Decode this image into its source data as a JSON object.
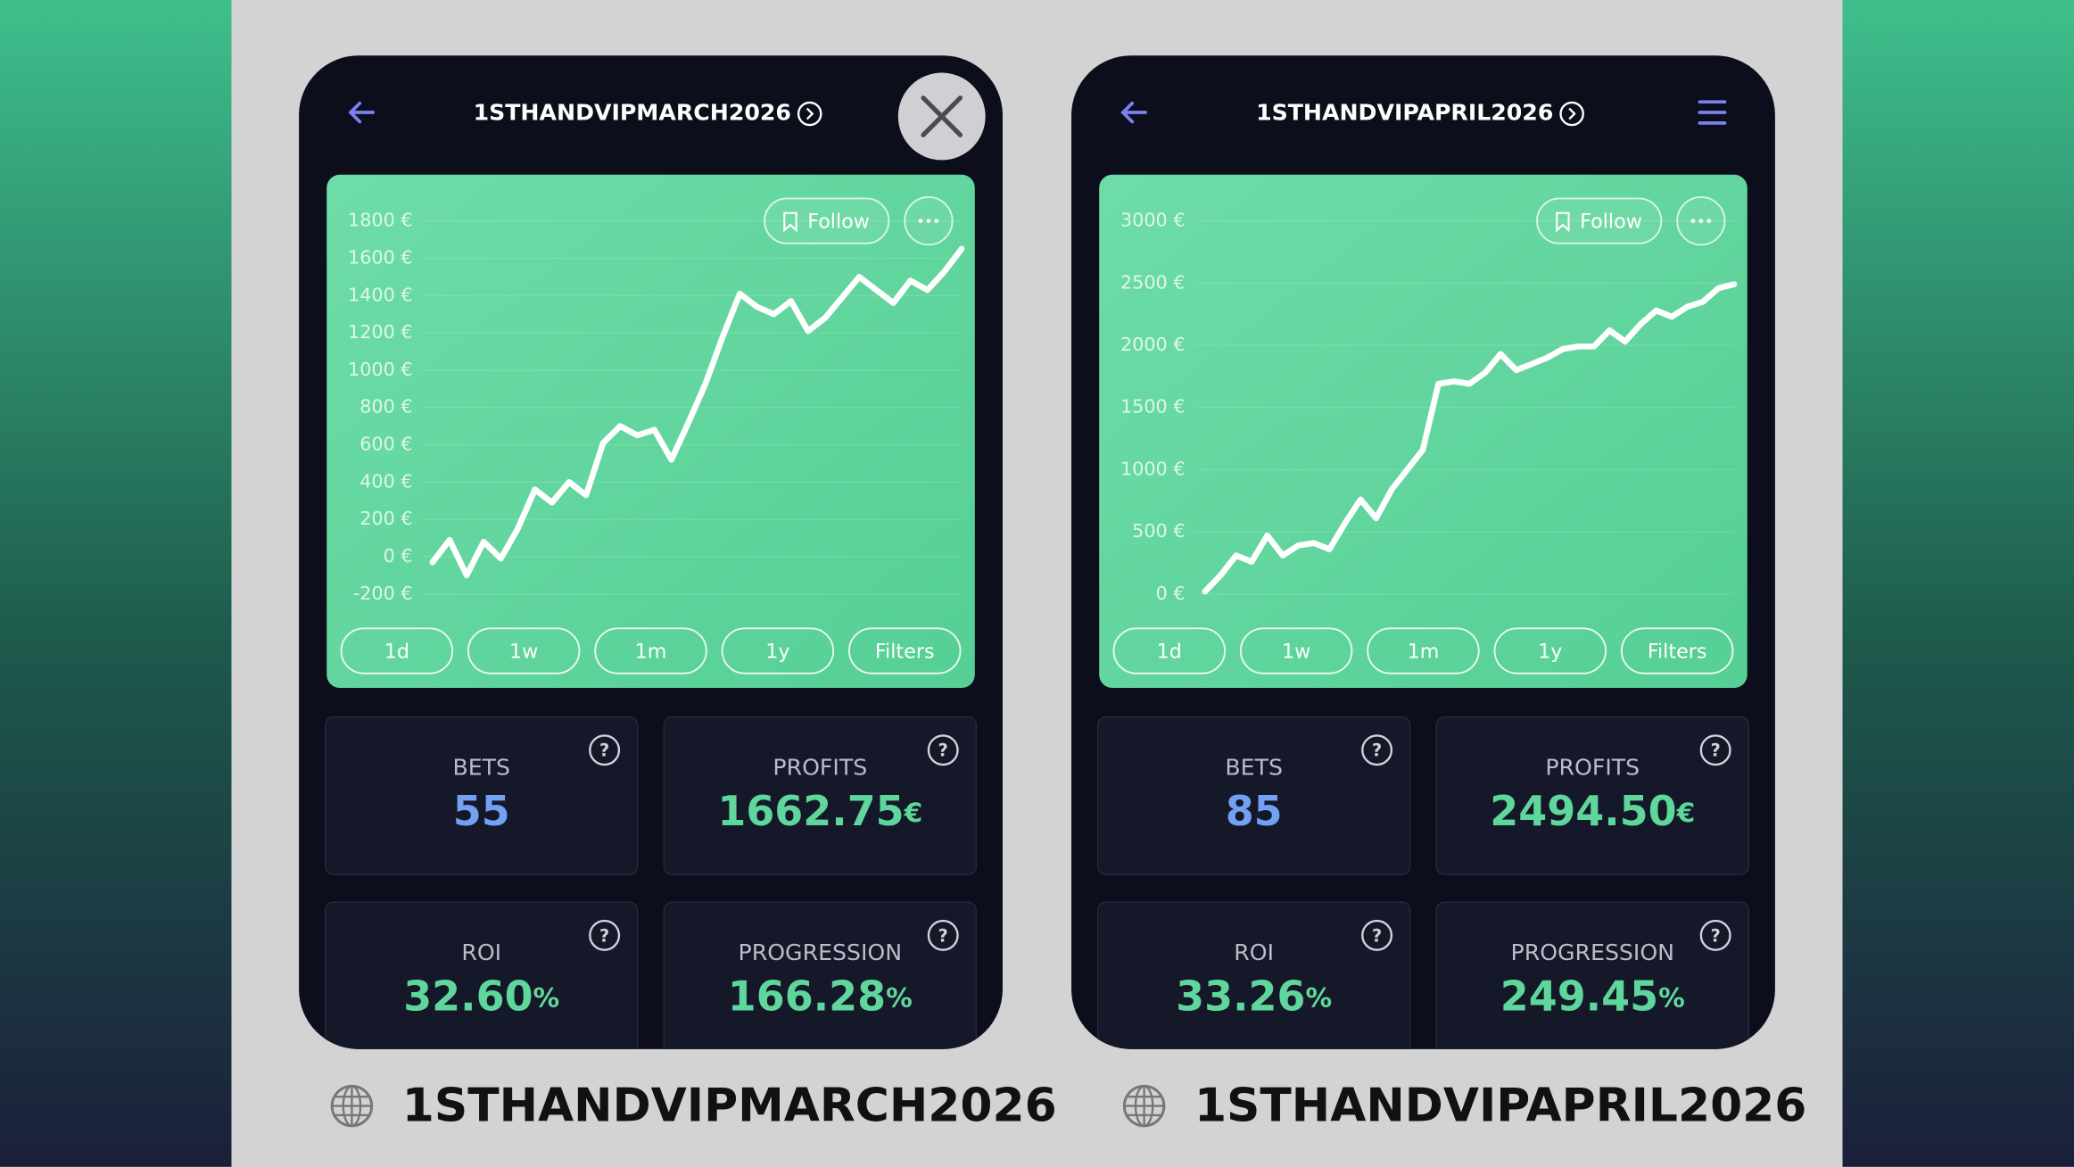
{
  "panels": [
    {
      "title": "1STHANDVIPMARCH2026",
      "follow": "Follow",
      "chart_data": {
        "type": "line",
        "ylim": [
          -200,
          1800
        ],
        "yticks": [
          {
            "value": -200,
            "label": "-200 €"
          },
          {
            "value": 0,
            "label": "0 €"
          },
          {
            "value": 200,
            "label": "200 €"
          },
          {
            "value": 400,
            "label": "400 €"
          },
          {
            "value": 600,
            "label": "600 €"
          },
          {
            "value": 800,
            "label": "800 €"
          },
          {
            "value": 1000,
            "label": "1000 €"
          },
          {
            "value": 1200,
            "label": "1200 €"
          },
          {
            "value": 1400,
            "label": "1400 €"
          },
          {
            "value": 1600,
            "label": "1600 €"
          },
          {
            "value": 1800,
            "label": "1800 €"
          }
        ],
        "grid": true,
        "series": [
          {
            "color": "#ffffff",
            "values": [
              -30,
              90,
              -100,
              80,
              -10,
              150,
              360,
              290,
              400,
              330,
              610,
              700,
              650,
              680,
              520,
              720,
              930,
              1180,
              1410,
              1340,
              1300,
              1370,
              1210,
              1280,
              1390,
              1500,
              1430,
              1360,
              1480,
              1430,
              1530,
              1650
            ]
          }
        ]
      },
      "buttons": [
        "1d",
        "1w",
        "1m",
        "1y",
        "Filters"
      ],
      "stats": [
        {
          "label": "BETS",
          "value": "55"
        },
        {
          "label": "PROFITS",
          "value": "1662.75",
          "unit": "€"
        },
        {
          "label": "ROI",
          "value": "32.60",
          "unit": "%"
        },
        {
          "label": "PROGRESSION",
          "value": "166.28",
          "unit": "%"
        }
      ],
      "footer": "1STHANDVIPMARCH2026"
    },
    {
      "title": "1STHANDVIPAPRIL2026",
      "follow": "Follow",
      "chart_data": {
        "type": "line",
        "ylim": [
          0,
          3000
        ],
        "yticks": [
          {
            "value": 0,
            "label": "0 €"
          },
          {
            "value": 500,
            "label": "500 €"
          },
          {
            "value": 1000,
            "label": "1000 €"
          },
          {
            "value": 1500,
            "label": "1500 €"
          },
          {
            "value": 2000,
            "label": "2000 €"
          },
          {
            "value": 2500,
            "label": "2500 €"
          },
          {
            "value": 3000,
            "label": "3000 €"
          }
        ],
        "grid": true,
        "series": [
          {
            "color": "#ffffff",
            "values": [
              20,
              150,
              310,
              260,
              470,
              310,
              390,
              410,
              360,
              570,
              760,
              610,
              840,
              1000,
              1160,
              1690,
              1710,
              1690,
              1780,
              1930,
              1800,
              1850,
              1900,
              1970,
              1990,
              1990,
              2120,
              2030,
              2170,
              2280,
              2230,
              2310,
              2350,
              2460,
              2490
            ]
          }
        ]
      },
      "buttons": [
        "1d",
        "1w",
        "1m",
        "1y",
        "Filters"
      ],
      "stats": [
        {
          "label": "BETS",
          "value": "85"
        },
        {
          "label": "PROFITS",
          "value": "2494.50",
          "unit": "€"
        },
        {
          "label": "ROI",
          "value": "33.26",
          "unit": "%"
        },
        {
          "label": "PROGRESSION",
          "value": "249.45",
          "unit": "%"
        }
      ],
      "footer": "1STHANDVIPAPRIL2026"
    }
  ]
}
